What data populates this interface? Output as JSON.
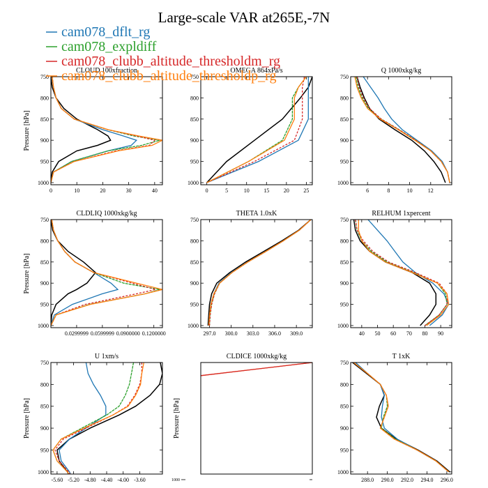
{
  "title": "Large-scale VAR at265E,-7N",
  "colors": {
    "black": "#000000",
    "blue": "#1f77b4",
    "green": "#2ca02c",
    "red": "#d62728",
    "orange": "#ff7f0e"
  },
  "legend": [
    {
      "label": "cam078_dflt_rg",
      "color": "#1f77b4"
    },
    {
      "label": "cam078_expldiff",
      "color": "#2ca02c"
    },
    {
      "label": "cam078_clubb_altitude_thresholdm_rg",
      "color": "#d62728"
    },
    {
      "label": "cam078_clubb_altitude_thresholdp_rg",
      "color": "#ff7f0e"
    }
  ],
  "chart_data": [
    {
      "type": "line",
      "title": "CLOUD 100xfraction",
      "ylabel": "Pressure [hPa]",
      "xlim": [
        0,
        43
      ],
      "ylim": [
        750,
        1005
      ],
      "y_inverted": true,
      "xticks": [
        0,
        10,
        20,
        30,
        40
      ],
      "xtick_labels": [
        "0",
        "10",
        "20",
        "30",
        "40"
      ],
      "yticks": [
        750,
        800,
        850,
        900,
        950,
        1000
      ],
      "y": [
        750,
        775,
        800,
        825,
        850,
        875,
        890,
        900,
        912,
        925,
        950,
        975,
        1000
      ],
      "series": [
        {
          "color": "#000000",
          "x": [
            0,
            0.5,
            2,
            5,
            10,
            18,
            22,
            23,
            18,
            10,
            3,
            0.5,
            0
          ]
        },
        {
          "color": "#1f77b4",
          "x": [
            0.5,
            1,
            2,
            4,
            9,
            20,
            28,
            33,
            31,
            22,
            8,
            1,
            0
          ]
        },
        {
          "color": "#2ca02c",
          "x": [
            0.5,
            1,
            2,
            4,
            9,
            22,
            32,
            42,
            35,
            22,
            8,
            1,
            0
          ]
        },
        {
          "color": "#d62728",
          "x": [
            0.5,
            1,
            2,
            4,
            9,
            22,
            33,
            40,
            38,
            25,
            9,
            1,
            0
          ]
        },
        {
          "color": "#ff7f0e",
          "x": [
            0.5,
            1,
            2,
            4,
            9,
            22,
            34,
            43,
            39,
            26,
            9,
            1,
            0
          ]
        }
      ]
    },
    {
      "type": "line",
      "title": "OMEGA 864xPa/s",
      "ylabel": "",
      "xlim": [
        -1.5,
        26.5
      ],
      "ylim": [
        750,
        1005
      ],
      "y_inverted": true,
      "xticks": [
        0,
        5,
        10,
        15,
        20,
        25
      ],
      "xtick_labels": [
        "0",
        "5",
        "10",
        "15",
        "20",
        "25"
      ],
      "yticks": [
        750,
        800,
        850,
        900,
        950,
        1000
      ],
      "y": [
        750,
        775,
        800,
        850,
        900,
        950,
        1000
      ],
      "series": [
        {
          "color": "#000000",
          "x": [
            26.5,
            25.5,
            23.5,
            19,
            12,
            5,
            0
          ]
        },
        {
          "color": "#1f77b4",
          "x": [
            25.5,
            25.5,
            25.5,
            25.5,
            23,
            13,
            0
          ]
        },
        {
          "color": "#2ca02c",
          "x": [
            25,
            23,
            21.5,
            21.5,
            19,
            10.5,
            0
          ]
        },
        {
          "color": "#d62728",
          "x": [
            24.5,
            24,
            24,
            24,
            22,
            12,
            0
          ]
        },
        {
          "color": "#ff7f0e",
          "x": [
            25,
            23,
            22,
            22,
            19.5,
            10.5,
            0
          ]
        }
      ]
    },
    {
      "type": "line",
      "title": "Q 1000xkg/kg",
      "ylabel": "",
      "xlim": [
        4.4,
        14
      ],
      "ylim": [
        750,
        1005
      ],
      "y_inverted": true,
      "xticks": [
        6,
        8,
        10,
        12
      ],
      "xtick_labels": [
        "6",
        "8",
        "10",
        "12"
      ],
      "yticks": [
        750,
        800,
        850,
        900,
        950,
        1000
      ],
      "y": [
        750,
        775,
        800,
        825,
        850,
        875,
        900,
        925,
        950,
        975,
        1000
      ],
      "series": [
        {
          "color": "#000000",
          "x": [
            5,
            5.3,
            5.7,
            6.2,
            7.1,
            8.6,
            10.2,
            11.4,
            12.3,
            13,
            13.4
          ]
        },
        {
          "color": "#1f77b4",
          "x": [
            5.6,
            6.3,
            7,
            7.6,
            8.3,
            9.3,
            10.7,
            12.1,
            13.1,
            13.6,
            13.8
          ]
        },
        {
          "color": "#2ca02c",
          "x": [
            4.9,
            5.1,
            5.5,
            6.1,
            7.3,
            9,
            10.6,
            12,
            13,
            13.6,
            13.8
          ]
        },
        {
          "color": "#d62728",
          "x": [
            5,
            5.2,
            5.6,
            6.2,
            7.3,
            9,
            10.6,
            12,
            13,
            13.6,
            13.8
          ]
        },
        {
          "color": "#ff7f0e",
          "x": [
            4.8,
            5,
            5.4,
            6,
            7.2,
            8.9,
            10.5,
            12,
            13,
            13.6,
            13.8
          ]
        }
      ]
    },
    {
      "type": "line",
      "title": "CLDLIQ 1000xkg/kg",
      "ylabel": "Pressure [hPa]",
      "xlim": [
        0,
        0.13
      ],
      "ylim": [
        750,
        1005
      ],
      "y_inverted": true,
      "xticks": [
        0.03,
        0.06,
        0.09,
        0.12
      ],
      "xtick_labels": [
        "0.0299999",
        "0.0599999",
        "0.0900000",
        "0.1200000"
      ],
      "yticks": [
        750,
        800,
        850,
        900,
        950,
        1000
      ],
      "y": [
        750,
        775,
        800,
        825,
        850,
        875,
        900,
        915,
        925,
        950,
        975,
        1000
      ],
      "series": [
        {
          "color": "#000000",
          "x": [
            0,
            0.002,
            0.008,
            0.02,
            0.038,
            0.052,
            0.042,
            0.03,
            0.02,
            0.006,
            0.001,
            0
          ]
        },
        {
          "color": "#1f77b4",
          "x": [
            0.001,
            0.003,
            0.008,
            0.016,
            0.028,
            0.05,
            0.07,
            0.078,
            0.06,
            0.025,
            0.004,
            0
          ]
        },
        {
          "color": "#2ca02c",
          "x": [
            0.001,
            0.003,
            0.008,
            0.016,
            0.028,
            0.05,
            0.085,
            0.127,
            0.11,
            0.045,
            0.006,
            0
          ]
        },
        {
          "color": "#d62728",
          "x": [
            0.001,
            0.003,
            0.008,
            0.016,
            0.028,
            0.05,
            0.095,
            0.122,
            0.1,
            0.04,
            0.006,
            0
          ]
        },
        {
          "color": "#ff7f0e",
          "x": [
            0.001,
            0.003,
            0.008,
            0.016,
            0.028,
            0.05,
            0.1,
            0.13,
            0.11,
            0.046,
            0.006,
            0
          ]
        }
      ]
    },
    {
      "type": "line",
      "title": "THETA 1.0xK",
      "ylabel": "",
      "xlim": [
        295.8,
        311.2
      ],
      "ylim": [
        750,
        1005
      ],
      "y_inverted": true,
      "xticks": [
        297,
        300,
        303,
        306,
        309
      ],
      "xtick_labels": [
        "297.0",
        "300.0",
        "303.0",
        "306.0",
        "309.0"
      ],
      "yticks": [
        750,
        800,
        850,
        900,
        950,
        1000
      ],
      "y": [
        750,
        775,
        800,
        825,
        850,
        875,
        900,
        925,
        950,
        975,
        1000
      ],
      "series": [
        {
          "color": "#000000",
          "x": [
            311,
            309.3,
            307,
            304.5,
            302,
            299.8,
            298,
            297.3,
            297,
            296.9,
            296.8
          ]
        },
        {
          "color": "#1f77b4",
          "x": [
            311,
            309.4,
            307.2,
            304.8,
            302.3,
            300,
            298.3,
            297.6,
            297.2,
            297,
            296.9
          ]
        },
        {
          "color": "#2ca02c",
          "x": [
            311,
            309.4,
            307.2,
            304.8,
            302.3,
            300.1,
            298.4,
            297.7,
            297.3,
            297.1,
            297
          ]
        },
        {
          "color": "#d62728",
          "x": [
            311,
            309.4,
            307.2,
            304.8,
            302.3,
            300.1,
            298.4,
            297.7,
            297.3,
            297.1,
            297
          ]
        },
        {
          "color": "#ff7f0e",
          "x": [
            311,
            309.4,
            307.2,
            304.8,
            302.3,
            300.1,
            298.4,
            297.6,
            297.2,
            297,
            296.9
          ]
        }
      ]
    },
    {
      "type": "line",
      "title": "RELHUM 1xpercent",
      "ylabel": "",
      "xlim": [
        33,
        97
      ],
      "ylim": [
        750,
        1005
      ],
      "y_inverted": true,
      "xticks": [
        40,
        50,
        60,
        70,
        80,
        90
      ],
      "xtick_labels": [
        "40",
        "50",
        "60",
        "70",
        "80",
        "90"
      ],
      "yticks": [
        750,
        800,
        850,
        900,
        950,
        1000
      ],
      "y": [
        750,
        775,
        800,
        825,
        850,
        875,
        900,
        925,
        950,
        975,
        1000
      ],
      "series": [
        {
          "color": "#000000",
          "x": [
            35,
            36,
            39,
            45,
            55,
            72,
            83,
            87,
            87,
            83,
            77
          ]
        },
        {
          "color": "#1f77b4",
          "x": [
            44,
            50,
            56,
            61,
            66,
            74,
            85,
            92,
            95,
            91,
            83
          ]
        },
        {
          "color": "#2ca02c",
          "x": [
            36,
            37,
            40,
            46,
            56,
            73,
            88,
            93,
            94,
            89,
            80
          ]
        },
        {
          "color": "#d62728",
          "x": [
            36,
            37,
            41,
            47,
            57,
            74,
            89,
            94,
            94,
            89,
            80
          ]
        },
        {
          "color": "#ff7f0e",
          "x": [
            38,
            38,
            40,
            45,
            55,
            72,
            88,
            94,
            95,
            90,
            81
          ]
        }
      ]
    },
    {
      "type": "line",
      "title": "U 1xm/s",
      "ylabel": "Pressure [hPa]",
      "xlim": [
        -5.75,
        -3.05
      ],
      "ylim": [
        750,
        1005
      ],
      "y_inverted": true,
      "xticks": [
        -5.6,
        -5.2,
        -4.8,
        -4.4,
        -4.0,
        -3.6
      ],
      "xtick_labels": [
        "-5.60",
        "-5.20",
        "-4.80",
        "-4.40",
        "-4.00",
        "-3.60"
      ],
      "yticks": [
        750,
        800,
        850,
        900,
        950,
        1000
      ],
      "y": [
        750,
        775,
        800,
        825,
        850,
        870,
        900,
        925,
        950,
        975,
        1000,
        1010
      ],
      "series": [
        {
          "color": "#000000",
          "x": [
            -3.1,
            -3.05,
            -3.12,
            -3.35,
            -3.7,
            -4.1,
            -4.8,
            -5.3,
            -5.6,
            -5.55,
            -5.35,
            -5.3
          ]
        },
        {
          "color": "#1f77b4",
          "x": [
            -4.9,
            -4.85,
            -4.72,
            -4.55,
            -4.42,
            -4.42,
            -4.9,
            -5.3,
            -5.55,
            -5.5,
            -5.3,
            -5.25
          ]
        },
        {
          "color": "#2ca02c",
          "x": [
            -3.75,
            -3.8,
            -3.85,
            -3.95,
            -4.1,
            -4.4,
            -5.0,
            -5.5,
            -5.7,
            -5.6,
            -5.35,
            -5.28
          ]
        },
        {
          "color": "#d62728",
          "x": [
            -3.55,
            -3.55,
            -3.6,
            -3.72,
            -3.9,
            -4.25,
            -4.9,
            -5.45,
            -5.65,
            -5.55,
            -5.32,
            -5.25
          ]
        },
        {
          "color": "#ff7f0e",
          "x": [
            -3.5,
            -3.55,
            -3.58,
            -3.7,
            -3.88,
            -4.25,
            -4.95,
            -5.5,
            -5.7,
            -5.6,
            -5.35,
            -5.28
          ]
        }
      ]
    },
    {
      "type": "line",
      "title": "CLDICE 1000xkg/kg",
      "ylabel": "Pressure [hPa]",
      "xlim": [
        0,
        1
      ],
      "ylim": [
        750,
        1005
      ],
      "y_inverted": true,
      "xticks": [],
      "xtick_labels": [],
      "yticks": [],
      "bottom_stub": "1000",
      "y": [
        750,
        780
      ],
      "series": [
        {
          "color": "#ff7f0e",
          "x": [
            1,
            0
          ]
        },
        {
          "color": "#d62728",
          "x": [
            1,
            0
          ]
        }
      ]
    },
    {
      "type": "line",
      "title": "T 1xK",
      "ylabel": "",
      "xlim": [
        286.3,
        296.5
      ],
      "ylim": [
        750,
        1005
      ],
      "y_inverted": true,
      "xticks": [
        288,
        290,
        292,
        294,
        296
      ],
      "xtick_labels": [
        "288.0",
        "290.0",
        "292.0",
        "294.0",
        "296.0"
      ],
      "yticks": [
        750,
        800,
        850,
        900,
        950,
        1000
      ],
      "y": [
        750,
        775,
        800,
        825,
        850,
        875,
        900,
        925,
        950,
        975,
        1000
      ],
      "series": [
        {
          "color": "#000000",
          "x": [
            286.5,
            287.9,
            289.3,
            289.7,
            289.2,
            288.9,
            289.4,
            290.9,
            293.1,
            295.0,
            296.3
          ]
        },
        {
          "color": "#1f77b4",
          "x": [
            286.8,
            288.0,
            289.3,
            289.7,
            289.5,
            289.4,
            289.7,
            291.0,
            293.0,
            294.9,
            296.2
          ]
        },
        {
          "color": "#2ca02c",
          "x": [
            286.6,
            288.0,
            289.3,
            289.9,
            290.0,
            289.6,
            289.4,
            290.8,
            293.0,
            294.9,
            296.2
          ]
        },
        {
          "color": "#d62728",
          "x": [
            286.6,
            288.0,
            289.3,
            289.9,
            290.1,
            289.7,
            289.3,
            290.7,
            293.0,
            294.9,
            296.2
          ]
        },
        {
          "color": "#ff7f0e",
          "x": [
            286.6,
            288.0,
            289.3,
            289.9,
            290.1,
            289.7,
            289.3,
            290.7,
            293.0,
            294.9,
            296.2
          ]
        }
      ]
    }
  ]
}
